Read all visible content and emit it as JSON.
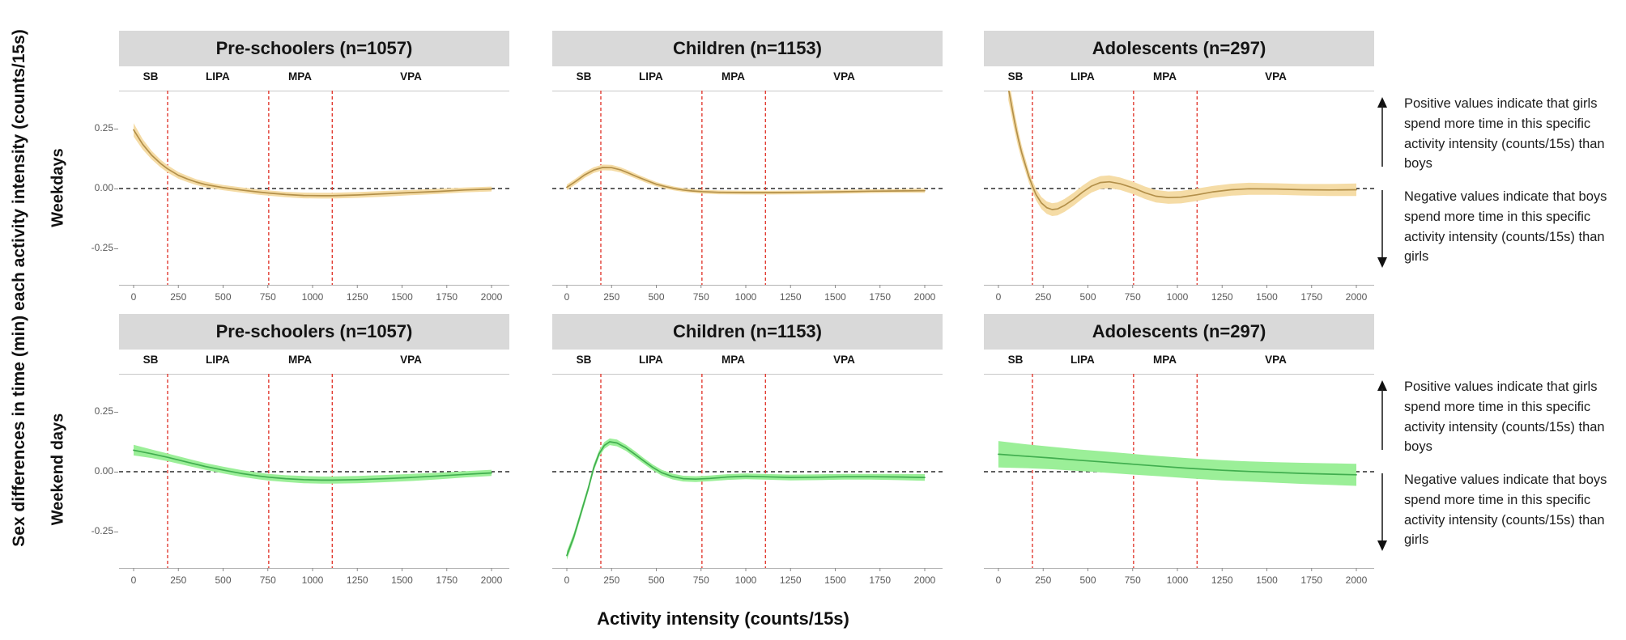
{
  "annotations": {
    "positive": "Positive values indicate that girls spend more time in this specific activity intensity (counts/15s) than boys",
    "negative": "Negative values indicate that boys spend more time in this specific activity intensity (counts/15s) than girls"
  },
  "chart_data": {
    "type": "line",
    "title": "",
    "xlabel": "Activity intensity (counts/15s)",
    "ylabel": "Sex differences in time (min) each activity intensity (counts/15s)",
    "panel_titles": [
      "Pre-schoolers (n=1057)",
      "Children (n=1153)",
      "Adolescents (n=297)"
    ],
    "row_labels": [
      "Weekdays",
      "Weekend days"
    ],
    "x_ticks": [
      0,
      250,
      500,
      750,
      1000,
      1250,
      1500,
      1750,
      2000
    ],
    "y_ticks": [
      {
        "value": 0.25,
        "label": "0.25"
      },
      {
        "value": 0.0,
        "label": "0.00"
      },
      {
        "value": -0.25,
        "label": "-0.25"
      }
    ],
    "xlim": [
      -80,
      2090
    ],
    "ylim": [
      -0.4,
      0.41
    ],
    "grid": false,
    "zero_line": 0,
    "intensity_zones": {
      "labels": [
        "SB",
        "LIPA",
        "MPA",
        "VPA"
      ],
      "cutpoints": [
        190,
        755,
        1110
      ],
      "label_x": [
        95,
        470,
        930,
        1550
      ]
    },
    "colors": {
      "weekday_line": "#b3904a",
      "weekday_ribbon": "#f5dca6",
      "weekend_line": "#41ae4f",
      "weekend_ribbon": "#9bef98",
      "cutpoint_line": "#e23c32",
      "zero_line": "#2b2b2b",
      "strip_bg": "#d9d9d9"
    },
    "series": [
      {
        "row": "Weekdays",
        "panel": "Pre-schoolers (n=1057)",
        "line_color": "#b3904a",
        "ribbon_color": "#f5dca6",
        "points": [
          [
            0,
            0.245,
            0.028
          ],
          [
            50,
            0.185,
            0.022
          ],
          [
            100,
            0.14,
            0.018
          ],
          [
            150,
            0.105,
            0.016
          ],
          [
            190,
            0.082,
            0.015
          ],
          [
            250,
            0.055,
            0.014
          ],
          [
            300,
            0.04,
            0.013
          ],
          [
            350,
            0.027,
            0.012
          ],
          [
            400,
            0.017,
            0.012
          ],
          [
            450,
            0.01,
            0.011
          ],
          [
            500,
            0.004,
            0.011
          ],
          [
            600,
            -0.006,
            0.011
          ],
          [
            700,
            -0.015,
            0.011
          ],
          [
            755,
            -0.019,
            0.011
          ],
          [
            850,
            -0.025,
            0.011
          ],
          [
            950,
            -0.029,
            0.012
          ],
          [
            1050,
            -0.03,
            0.012
          ],
          [
            1110,
            -0.03,
            0.012
          ],
          [
            1250,
            -0.027,
            0.012
          ],
          [
            1400,
            -0.022,
            0.012
          ],
          [
            1550,
            -0.017,
            0.011
          ],
          [
            1700,
            -0.012,
            0.011
          ],
          [
            1850,
            -0.006,
            0.01
          ],
          [
            2000,
            -0.002,
            0.01
          ]
        ]
      },
      {
        "row": "Weekdays",
        "panel": "Children (n=1153)",
        "line_color": "#b3904a",
        "ribbon_color": "#f5dca6",
        "points": [
          [
            0,
            0.005,
            0.012
          ],
          [
            50,
            0.03,
            0.012
          ],
          [
            100,
            0.057,
            0.012
          ],
          [
            150,
            0.077,
            0.012
          ],
          [
            200,
            0.088,
            0.012
          ],
          [
            250,
            0.087,
            0.012
          ],
          [
            300,
            0.078,
            0.011
          ],
          [
            350,
            0.063,
            0.011
          ],
          [
            400,
            0.047,
            0.01
          ],
          [
            450,
            0.032,
            0.01
          ],
          [
            500,
            0.018,
            0.009
          ],
          [
            550,
            0.008,
            0.009
          ],
          [
            600,
            0.0,
            0.008
          ],
          [
            650,
            -0.006,
            0.008
          ],
          [
            700,
            -0.01,
            0.008
          ],
          [
            755,
            -0.013,
            0.008
          ],
          [
            850,
            -0.016,
            0.008
          ],
          [
            1000,
            -0.017,
            0.008
          ],
          [
            1150,
            -0.017,
            0.008
          ],
          [
            1300,
            -0.016,
            0.008
          ],
          [
            1500,
            -0.014,
            0.008
          ],
          [
            1700,
            -0.011,
            0.008
          ],
          [
            1850,
            -0.01,
            0.008
          ],
          [
            2000,
            -0.009,
            0.009
          ]
        ]
      },
      {
        "row": "Weekdays",
        "panel": "Adolescents (n=297)",
        "line_color": "#b3904a",
        "ribbon_color": "#f5dca6",
        "points": [
          [
            55,
            0.42,
            0.05
          ],
          [
            70,
            0.36,
            0.045
          ],
          [
            90,
            0.28,
            0.04
          ],
          [
            110,
            0.21,
            0.035
          ],
          [
            130,
            0.15,
            0.03
          ],
          [
            150,
            0.1,
            0.027
          ],
          [
            170,
            0.05,
            0.025
          ],
          [
            190,
            0.01,
            0.024
          ],
          [
            210,
            -0.025,
            0.024
          ],
          [
            240,
            -0.06,
            0.025
          ],
          [
            270,
            -0.08,
            0.026
          ],
          [
            300,
            -0.088,
            0.027
          ],
          [
            330,
            -0.085,
            0.027
          ],
          [
            370,
            -0.07,
            0.027
          ],
          [
            420,
            -0.045,
            0.027
          ],
          [
            470,
            -0.015,
            0.027
          ],
          [
            520,
            0.01,
            0.027
          ],
          [
            570,
            0.025,
            0.027
          ],
          [
            620,
            0.028,
            0.027
          ],
          [
            680,
            0.02,
            0.026
          ],
          [
            755,
            0.002,
            0.026
          ],
          [
            820,
            -0.018,
            0.026
          ],
          [
            880,
            -0.032,
            0.026
          ],
          [
            950,
            -0.038,
            0.026
          ],
          [
            1020,
            -0.036,
            0.026
          ],
          [
            1110,
            -0.026,
            0.026
          ],
          [
            1200,
            -0.014,
            0.025
          ],
          [
            1300,
            -0.005,
            0.025
          ],
          [
            1400,
            -0.001,
            0.025
          ],
          [
            1550,
            -0.002,
            0.024
          ],
          [
            1700,
            -0.005,
            0.024
          ],
          [
            1850,
            -0.006,
            0.025
          ],
          [
            2000,
            -0.005,
            0.026
          ]
        ]
      },
      {
        "row": "Weekend days",
        "panel": "Pre-schoolers (n=1057)",
        "line_color": "#41ae4f",
        "ribbon_color": "#9bef98",
        "points": [
          [
            0,
            0.09,
            0.022
          ],
          [
            100,
            0.075,
            0.018
          ],
          [
            190,
            0.06,
            0.016
          ],
          [
            300,
            0.04,
            0.015
          ],
          [
            400,
            0.022,
            0.014
          ],
          [
            500,
            0.007,
            0.014
          ],
          [
            600,
            -0.007,
            0.014
          ],
          [
            700,
            -0.018,
            0.014
          ],
          [
            755,
            -0.023,
            0.014
          ],
          [
            850,
            -0.029,
            0.014
          ],
          [
            950,
            -0.033,
            0.015
          ],
          [
            1050,
            -0.035,
            0.015
          ],
          [
            1110,
            -0.035,
            0.015
          ],
          [
            1250,
            -0.033,
            0.015
          ],
          [
            1400,
            -0.029,
            0.015
          ],
          [
            1550,
            -0.024,
            0.015
          ],
          [
            1700,
            -0.018,
            0.014
          ],
          [
            1850,
            -0.011,
            0.013
          ],
          [
            2000,
            -0.005,
            0.013
          ]
        ]
      },
      {
        "row": "Weekend days",
        "panel": "Children (n=1153)",
        "line_color": "#41ae4f",
        "ribbon_color": "#9bef98",
        "points": [
          [
            0,
            -0.35,
            0.018
          ],
          [
            40,
            -0.27,
            0.016
          ],
          [
            80,
            -0.17,
            0.015
          ],
          [
            120,
            -0.07,
            0.014
          ],
          [
            150,
            0.015,
            0.014
          ],
          [
            180,
            0.075,
            0.014
          ],
          [
            210,
            0.11,
            0.014
          ],
          [
            240,
            0.125,
            0.014
          ],
          [
            280,
            0.12,
            0.014
          ],
          [
            330,
            0.1,
            0.013
          ],
          [
            380,
            0.073,
            0.013
          ],
          [
            430,
            0.045,
            0.012
          ],
          [
            480,
            0.018,
            0.012
          ],
          [
            530,
            -0.004,
            0.012
          ],
          [
            590,
            -0.02,
            0.012
          ],
          [
            650,
            -0.029,
            0.012
          ],
          [
            720,
            -0.031,
            0.012
          ],
          [
            800,
            -0.028,
            0.012
          ],
          [
            900,
            -0.022,
            0.012
          ],
          [
            1000,
            -0.019,
            0.012
          ],
          [
            1100,
            -0.021,
            0.012
          ],
          [
            1250,
            -0.024,
            0.012
          ],
          [
            1400,
            -0.023,
            0.012
          ],
          [
            1550,
            -0.021,
            0.012
          ],
          [
            1700,
            -0.021,
            0.012
          ],
          [
            1850,
            -0.022,
            0.013
          ],
          [
            2000,
            -0.024,
            0.014
          ]
        ]
      },
      {
        "row": "Weekend days",
        "panel": "Adolescents (n=297)",
        "line_color": "#41ae4f",
        "ribbon_color": "#9bef98",
        "points": [
          [
            0,
            0.073,
            0.055
          ],
          [
            150,
            0.065,
            0.05
          ],
          [
            300,
            0.057,
            0.047
          ],
          [
            450,
            0.048,
            0.045
          ],
          [
            600,
            0.04,
            0.044
          ],
          [
            755,
            0.031,
            0.043
          ],
          [
            900,
            0.023,
            0.042
          ],
          [
            1050,
            0.015,
            0.042
          ],
          [
            1110,
            0.012,
            0.042
          ],
          [
            1250,
            0.006,
            0.042
          ],
          [
            1400,
            0.001,
            0.042
          ],
          [
            1550,
            -0.003,
            0.043
          ],
          [
            1700,
            -0.007,
            0.044
          ],
          [
            1850,
            -0.01,
            0.045
          ],
          [
            2000,
            -0.013,
            0.046
          ]
        ]
      }
    ]
  }
}
